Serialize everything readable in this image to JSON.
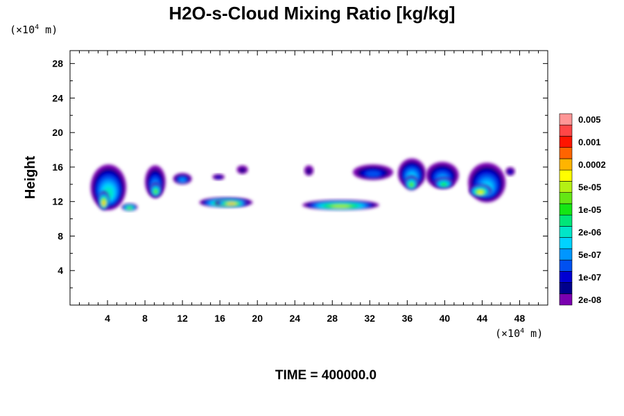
{
  "chart_data": {
    "type": "heatmap",
    "title": "H2O-s-Cloud Mixing Ratio [kg/kg]",
    "ylabel": "Height",
    "xlabel": "",
    "x_unit_prefix": "(×10",
    "x_unit_exp": "4",
    "x_unit_suffix": " m)",
    "y_unit_prefix": "(×10",
    "y_unit_exp": "4",
    "y_unit_suffix": " m)",
    "xlim": [
      0,
      51
    ],
    "ylim": [
      0,
      29.5
    ],
    "x_ticks": [
      4,
      8,
      12,
      16,
      20,
      24,
      28,
      32,
      36,
      40,
      44,
      48
    ],
    "x_tick_labels": [
      "4",
      "8",
      "12",
      "16",
      "20",
      "24",
      "28",
      "32",
      "36",
      "40",
      "44",
      "48"
    ],
    "y_ticks": [
      4,
      8,
      12,
      16,
      20,
      24,
      28
    ],
    "y_tick_labels": [
      "4",
      "8",
      "12",
      "16",
      "20",
      "24",
      "28"
    ],
    "colorbar": {
      "colors": [
        "#7a00b0",
        "#00008c",
        "#0000d2",
        "#0050f0",
        "#0096ff",
        "#00d2ff",
        "#00e6c8",
        "#00e678",
        "#14e614",
        "#64e614",
        "#b4f014",
        "#ffff00",
        "#ffb400",
        "#ff6400",
        "#ff1400",
        "#ff4646",
        "#ff9696"
      ],
      "labels": [
        "2e-08",
        "1e-07",
        "5e-07",
        "2e-06",
        "1e-05",
        "5e-05",
        "0.0002",
        "0.001",
        "0.005"
      ]
    },
    "clouds": [
      {
        "x": [
          2.2,
          6.0
        ],
        "y": [
          11.0,
          16.3
        ],
        "level": 6
      },
      {
        "x": [
          3.0,
          4.2
        ],
        "y": [
          11.0,
          13.2
        ],
        "level": 12
      },
      {
        "x": [
          5.5,
          7.2
        ],
        "y": [
          10.9,
          11.8
        ],
        "level": 9
      },
      {
        "x": [
          8.0,
          10.2
        ],
        "y": [
          12.4,
          16.2
        ],
        "level": 4
      },
      {
        "x": [
          8.5,
          9.8
        ],
        "y": [
          12.5,
          14.2
        ],
        "level": 9
      },
      {
        "x": [
          11.0,
          13.0
        ],
        "y": [
          14.0,
          15.3
        ],
        "level": 4
      },
      {
        "x": [
          13.8,
          19.5
        ],
        "y": [
          11.3,
          12.5
        ],
        "level": 10
      },
      {
        "x": [
          15.5,
          19.0
        ],
        "y": [
          11.4,
          12.3
        ],
        "level": 12
      },
      {
        "x": [
          15.2,
          16.5
        ],
        "y": [
          14.5,
          15.2
        ],
        "level": 2
      },
      {
        "x": [
          17.8,
          19.0
        ],
        "y": [
          15.2,
          16.2
        ],
        "level": 1
      },
      {
        "x": [
          25.0,
          26.0
        ],
        "y": [
          15.0,
          16.2
        ],
        "level": 1
      },
      {
        "x": [
          24.8,
          33.0
        ],
        "y": [
          11.0,
          12.2
        ],
        "level": 10
      },
      {
        "x": [
          30.2,
          34.5
        ],
        "y": [
          14.5,
          16.3
        ],
        "level": 3
      },
      {
        "x": [
          35.0,
          38.0
        ],
        "y": [
          13.5,
          17.0
        ],
        "level": 5
      },
      {
        "x": [
          35.7,
          37.2
        ],
        "y": [
          13.3,
          15.0
        ],
        "level": 9
      },
      {
        "x": [
          38.0,
          41.5
        ],
        "y": [
          13.5,
          16.6
        ],
        "level": 4
      },
      {
        "x": [
          38.8,
          41.0
        ],
        "y": [
          13.5,
          14.8
        ],
        "level": 8
      },
      {
        "x": [
          42.5,
          46.5
        ],
        "y": [
          11.9,
          16.5
        ],
        "level": 5
      },
      {
        "x": [
          42.6,
          45.0
        ],
        "y": [
          12.5,
          14.0
        ],
        "level": 11
      },
      {
        "x": [
          46.5,
          47.5
        ],
        "y": [
          15.0,
          16.0
        ],
        "level": 2
      }
    ],
    "grid": false,
    "legend": "right"
  },
  "time_label": "TIME = 400000.0"
}
